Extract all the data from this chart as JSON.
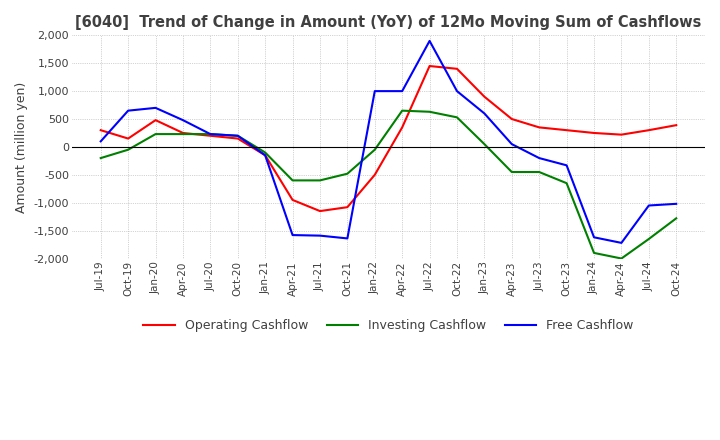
{
  "title": "[6040]  Trend of Change in Amount (YoY) of 12Mo Moving Sum of Cashflows",
  "ylabel": "Amount (million yen)",
  "ylim": [
    -2000,
    2000
  ],
  "yticks": [
    -2000,
    -1500,
    -1000,
    -500,
    0,
    500,
    1000,
    1500,
    2000
  ],
  "x_labels": [
    "Jul-19",
    "Oct-19",
    "Jan-20",
    "Apr-20",
    "Jul-20",
    "Oct-20",
    "Jan-21",
    "Apr-21",
    "Jul-21",
    "Oct-21",
    "Jan-22",
    "Apr-22",
    "Jul-22",
    "Oct-22",
    "Jan-23",
    "Apr-23",
    "Jul-23",
    "Oct-23",
    "Jan-24",
    "Apr-24",
    "Jul-24",
    "Oct-24"
  ],
  "operating": [
    300,
    150,
    480,
    250,
    200,
    150,
    -150,
    -950,
    -1150,
    -1080,
    -500,
    350,
    1450,
    1400,
    900,
    500,
    350,
    300,
    250,
    220,
    300,
    390
  ],
  "investing": [
    -200,
    -50,
    230,
    230,
    230,
    200,
    -100,
    -600,
    -600,
    -480,
    -50,
    650,
    630,
    530,
    50,
    -450,
    -450,
    -650,
    -1900,
    -2000,
    -1650,
    -1280
  ],
  "free": [
    100,
    650,
    700,
    480,
    230,
    200,
    -150,
    -1580,
    -1590,
    -1640,
    1000,
    1000,
    1900,
    1000,
    600,
    50,
    -200,
    -330,
    -1620,
    -1720,
    -1050,
    -1020
  ],
  "operating_color": "#ff0000",
  "investing_color": "#008000",
  "free_color": "#0000ff",
  "bg_color": "#ffffff",
  "plot_bg_color": "#ffffff",
  "grid_color": "#aaaaaa",
  "title_color": "#404040",
  "label_color": "#404040",
  "zero_line_color": "#000000"
}
